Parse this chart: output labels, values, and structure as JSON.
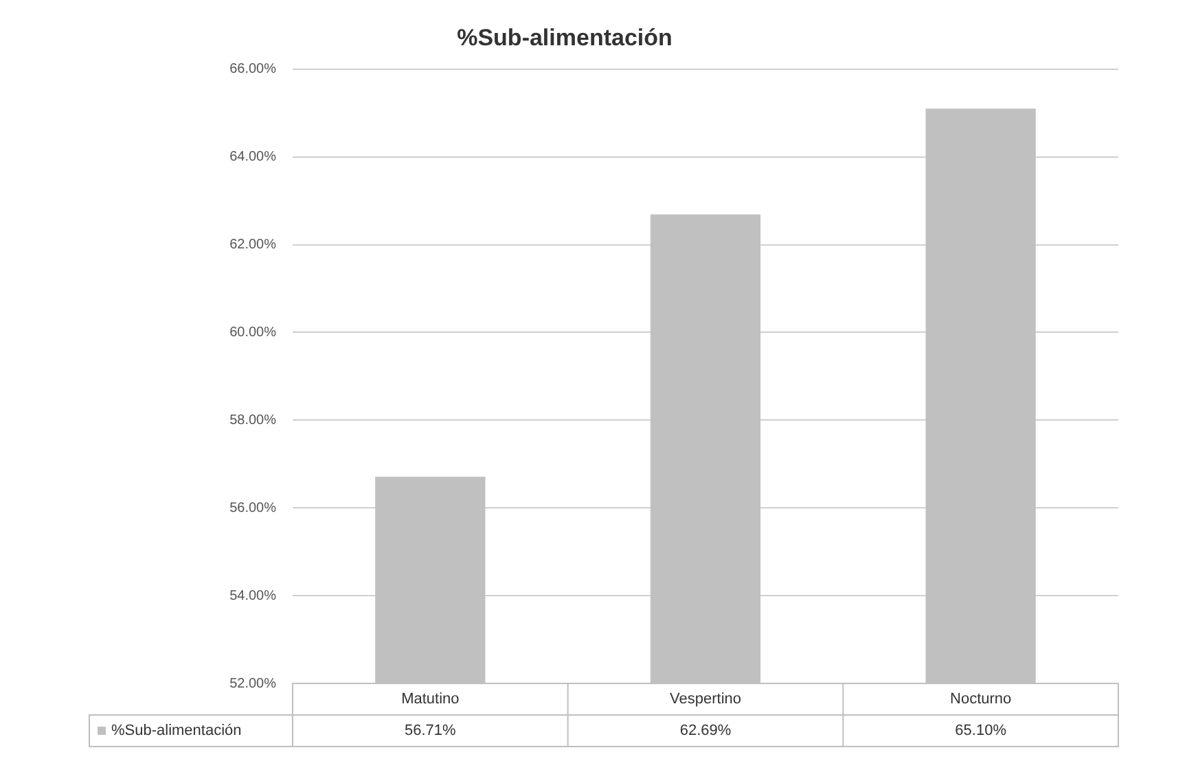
{
  "chart_data": {
    "type": "bar",
    "title": "%Sub-alimentación",
    "categories": [
      "Matutino",
      "Vespertino",
      "Nocturno"
    ],
    "series": [
      {
        "name": "%Sub-alimentación",
        "color": "#c0c0c0",
        "values": [
          56.71,
          62.69,
          65.1
        ],
        "value_labels": [
          "56.71%",
          "62.69%",
          "65.10%"
        ]
      }
    ],
    "ylim": [
      52,
      66
    ],
    "yticks": [
      {
        "value": 52,
        "label": "52.00%"
      },
      {
        "value": 54,
        "label": "54.00%"
      },
      {
        "value": 56,
        "label": "56.00%"
      },
      {
        "value": 58,
        "label": "58.00%"
      },
      {
        "value": 60,
        "label": "60.00%"
      },
      {
        "value": 62,
        "label": "62.00%"
      },
      {
        "value": 64,
        "label": "64.00%"
      },
      {
        "value": 66,
        "label": "66.00%"
      }
    ],
    "grid": "y",
    "legend": "bottom left"
  }
}
